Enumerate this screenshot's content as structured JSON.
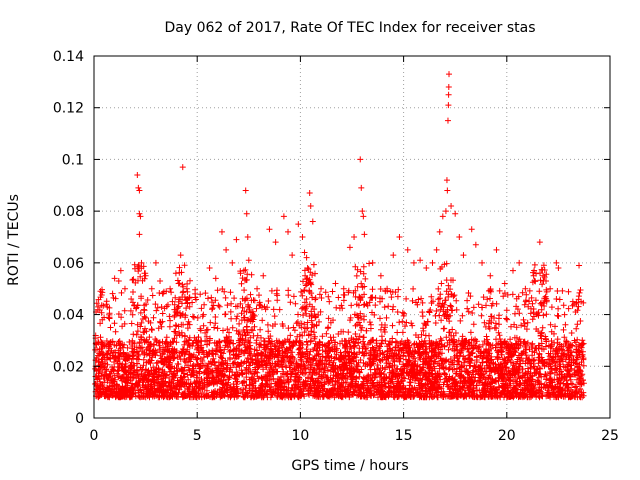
{
  "chart_data": {
    "type": "scatter",
    "title": "Day 062 of 2017, Rate Of TEC Index for receiver stas",
    "xlabel": "GPS time / hours",
    "ylabel": "ROTI / TECUs",
    "xlim": [
      0,
      25
    ],
    "ylim": [
      0,
      0.14
    ],
    "x_ticks": [
      0,
      5,
      10,
      15,
      20,
      25
    ],
    "x_tick_labels": [
      "0",
      "5",
      "10",
      "15",
      "20",
      "25"
    ],
    "y_ticks": [
      0,
      0.02,
      0.04,
      0.06,
      0.08,
      0.1,
      0.12,
      0.14
    ],
    "y_tick_labels": [
      "0",
      "0.02",
      "0.04",
      "0.06",
      "0.08",
      "0.1",
      "0.12",
      "0.14"
    ],
    "grid": true,
    "marker": "+",
    "color": "#ff0000",
    "series": [
      {
        "name": "ROTI",
        "points": [
          [
            0.1,
            0.041
          ],
          [
            0.2,
            0.043
          ],
          [
            0.4,
            0.038
          ],
          [
            0.6,
            0.044
          ],
          [
            0.8,
            0.035
          ],
          [
            1.0,
            0.054
          ],
          [
            1.2,
            0.053
          ],
          [
            1.3,
            0.057
          ],
          [
            1.5,
            0.05
          ],
          [
            1.8,
            0.046
          ],
          [
            2.1,
            0.094
          ],
          [
            2.15,
            0.089
          ],
          [
            2.2,
            0.088
          ],
          [
            2.2,
            0.079
          ],
          [
            2.25,
            0.078
          ],
          [
            2.2,
            0.071
          ],
          [
            2.3,
            0.06
          ],
          [
            2.5,
            0.055
          ],
          [
            2.8,
            0.05
          ],
          [
            3.0,
            0.06
          ],
          [
            3.2,
            0.053
          ],
          [
            3.5,
            0.049
          ],
          [
            3.8,
            0.045
          ],
          [
            4.1,
            0.052
          ],
          [
            4.2,
            0.063
          ],
          [
            4.3,
            0.097
          ],
          [
            4.5,
            0.05
          ],
          [
            4.9,
            0.048
          ],
          [
            5.3,
            0.04
          ],
          [
            5.6,
            0.058
          ],
          [
            5.9,
            0.054
          ],
          [
            6.2,
            0.072
          ],
          [
            6.4,
            0.065
          ],
          [
            6.7,
            0.06
          ],
          [
            6.9,
            0.069
          ],
          [
            7.1,
            0.056
          ],
          [
            7.35,
            0.088
          ],
          [
            7.4,
            0.079
          ],
          [
            7.45,
            0.07
          ],
          [
            7.5,
            0.061
          ],
          [
            7.9,
            0.05
          ],
          [
            8.2,
            0.055
          ],
          [
            8.5,
            0.073
          ],
          [
            8.8,
            0.068
          ],
          [
            9.2,
            0.078
          ],
          [
            9.4,
            0.072
          ],
          [
            9.6,
            0.063
          ],
          [
            9.9,
            0.075
          ],
          [
            10.1,
            0.07
          ],
          [
            10.2,
            0.064
          ],
          [
            10.3,
            0.062
          ],
          [
            10.35,
            0.058
          ],
          [
            10.45,
            0.087
          ],
          [
            10.5,
            0.082
          ],
          [
            10.6,
            0.076
          ],
          [
            11.0,
            0.05
          ],
          [
            11.4,
            0.045
          ],
          [
            11.7,
            0.052
          ],
          [
            12.1,
            0.05
          ],
          [
            12.4,
            0.066
          ],
          [
            12.6,
            0.07
          ],
          [
            12.9,
            0.1
          ],
          [
            12.95,
            0.089
          ],
          [
            13.0,
            0.08
          ],
          [
            13.05,
            0.078
          ],
          [
            13.1,
            0.071
          ],
          [
            13.5,
            0.06
          ],
          [
            13.9,
            0.055
          ],
          [
            14.2,
            0.05
          ],
          [
            14.5,
            0.063
          ],
          [
            14.8,
            0.07
          ],
          [
            15.2,
            0.065
          ],
          [
            15.5,
            0.06
          ],
          [
            15.8,
            0.061
          ],
          [
            16.1,
            0.058
          ],
          [
            16.4,
            0.06
          ],
          [
            16.6,
            0.065
          ],
          [
            16.75,
            0.072
          ],
          [
            16.9,
            0.078
          ],
          [
            17.05,
            0.08
          ],
          [
            17.1,
            0.092
          ],
          [
            17.12,
            0.088
          ],
          [
            17.15,
            0.115
          ],
          [
            17.17,
            0.121
          ],
          [
            17.18,
            0.125
          ],
          [
            17.19,
            0.128
          ],
          [
            17.2,
            0.133
          ],
          [
            17.3,
            0.082
          ],
          [
            17.5,
            0.079
          ],
          [
            17.7,
            0.07
          ],
          [
            17.9,
            0.063
          ],
          [
            18.3,
            0.073
          ],
          [
            18.5,
            0.067
          ],
          [
            18.8,
            0.06
          ],
          [
            19.2,
            0.055
          ],
          [
            19.5,
            0.065
          ],
          [
            19.9,
            0.052
          ],
          [
            20.3,
            0.057
          ],
          [
            20.6,
            0.06
          ],
          [
            20.9,
            0.05
          ],
          [
            21.3,
            0.055
          ],
          [
            21.6,
            0.068
          ],
          [
            21.9,
            0.053
          ],
          [
            22.1,
            0.05
          ],
          [
            22.4,
            0.06
          ],
          [
            22.5,
            0.058
          ],
          [
            22.8,
            0.04
          ],
          [
            23.2,
            0.045
          ],
          [
            23.5,
            0.059
          ],
          [
            23.6,
            0.045
          ]
        ],
        "band_note": "dense scatter baseline of ROTI values between about 0.005 and 0.03 TECU/s over 0 to 23.8 h"
      }
    ],
    "legend": "none"
  }
}
